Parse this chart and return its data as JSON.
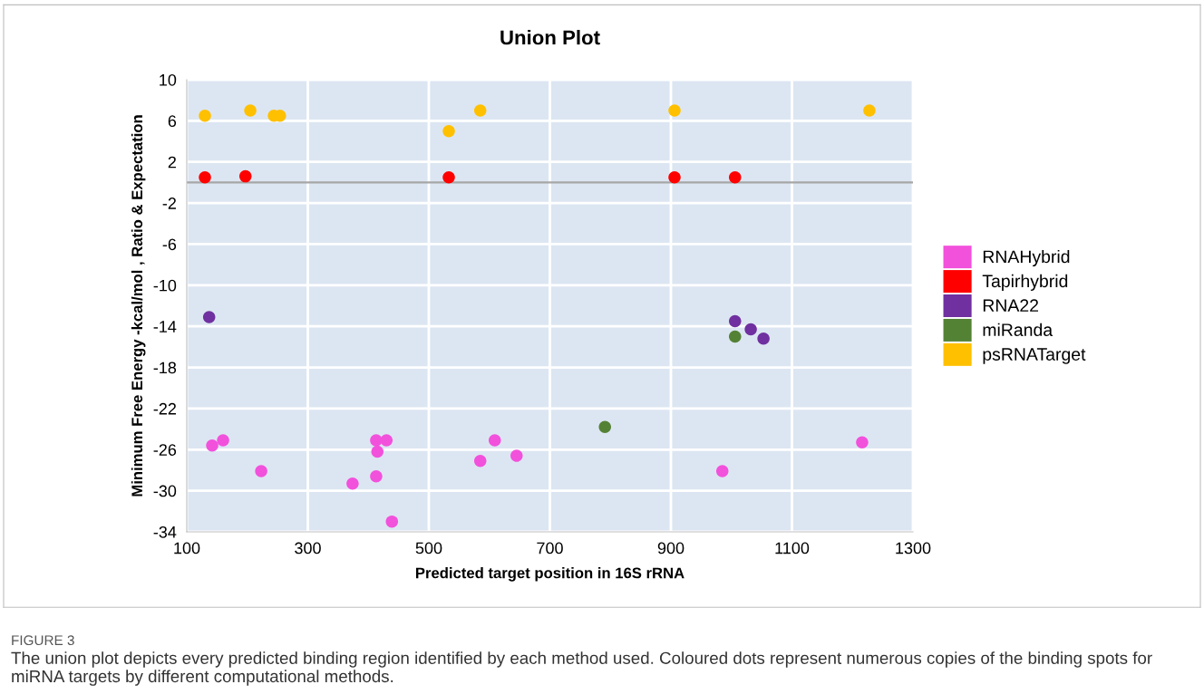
{
  "chart_data": {
    "type": "scatter",
    "title": "Union Plot",
    "xlabel": "Predicted target position in 16S rRNA",
    "ylabel": "Minimum Free Energy -kcal/mol , Ratio & Expectation",
    "xlim": [
      100,
      1300
    ],
    "xticks": [
      100,
      300,
      500,
      700,
      900,
      1100,
      1300
    ],
    "ylim": [
      -34,
      10
    ],
    "yticks": [
      -34,
      -30,
      -26,
      -22,
      -18,
      -14,
      -10,
      -6,
      -2,
      2,
      6,
      10
    ],
    "grid": true,
    "legend": "right",
    "marker": "circle",
    "ref_lines": [
      {
        "axis": "y",
        "value": 0,
        "color": "#a6a6a6"
      }
    ],
    "series": [
      {
        "name": "RNAHybrid",
        "color": "#f251dc",
        "x": [
          142,
          160,
          223,
          374,
          413,
          415,
          413,
          430,
          439,
          585,
          609,
          645,
          985,
          1216
        ],
        "values": [
          -25.6,
          -25.1,
          -28.1,
          -29.3,
          -25.1,
          -26.2,
          -28.6,
          -25.1,
          -33.0,
          -27.1,
          -25.1,
          -26.6,
          -28.1,
          -25.3
        ]
      },
      {
        "name": "Tapirhybrid",
        "color": "#ff0000",
        "x": [
          130,
          197,
          533,
          906,
          1006
        ],
        "values": [
          0.5,
          0.6,
          0.5,
          0.5,
          0.5
        ]
      },
      {
        "name": "RNA22",
        "color": "#7030a0",
        "x": [
          137,
          1006,
          1032,
          1053
        ],
        "values": [
          -13.1,
          -13.5,
          -14.3,
          -15.2
        ]
      },
      {
        "name": "miRanda",
        "color": "#548235",
        "x": [
          1006,
          791
        ],
        "values": [
          -15.0,
          -23.8
        ]
      },
      {
        "name": "psRNATarget",
        "color": "#ffc000",
        "x": [
          130,
          205,
          244,
          254,
          533,
          585,
          906,
          1228
        ],
        "values": [
          6.5,
          7,
          6.5,
          6.5,
          5,
          7,
          7,
          7
        ]
      }
    ],
    "annotations": [
      "FIGURE 3",
      "The union plot depicts every predicted binding region identified by each method used. Coloured dots represent numerous copies of the binding spots for miRNA targets by different computational methods."
    ]
  }
}
